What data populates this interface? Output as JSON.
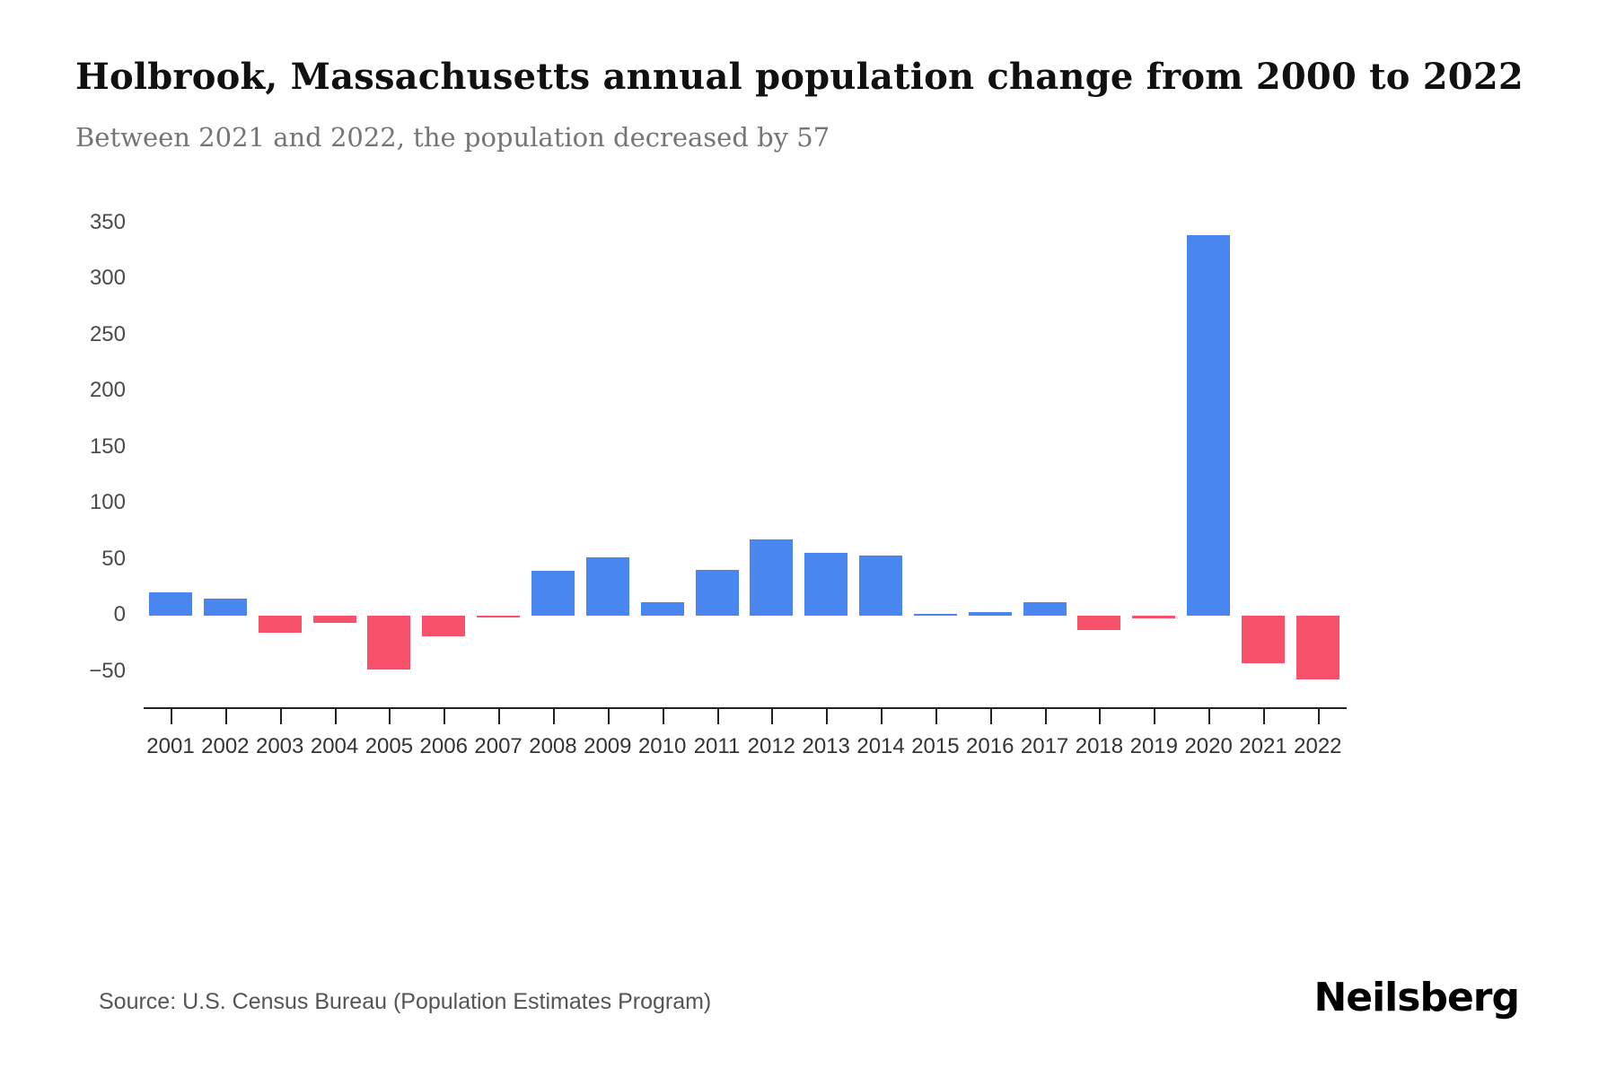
{
  "header": {
    "title": "Holbrook, Massachusetts annual population change from 2000 to 2022",
    "subtitle": "Between 2021 and 2022, the population decreased by 57"
  },
  "footer": {
    "source": "Source: U.S. Census Bureau (Population Estimates Program)",
    "logo": "Neilsberg"
  },
  "colors": {
    "positive_bar": "#4a86f0",
    "negative_bar": "#f8516c",
    "axis": "#222222",
    "tick_label": "#4a4a4a"
  },
  "chart_data": {
    "type": "bar",
    "title": "Holbrook, Massachusetts annual population change from 2000 to 2022",
    "xlabel": "",
    "ylabel": "",
    "categories": [
      "2001",
      "2002",
      "2003",
      "2004",
      "2005",
      "2006",
      "2007",
      "2008",
      "2009",
      "2010",
      "2011",
      "2012",
      "2013",
      "2014",
      "2015",
      "2016",
      "2017",
      "2018",
      "2019",
      "2020",
      "2021",
      "2022"
    ],
    "values": [
      21,
      15,
      -15,
      -6,
      -48,
      -18,
      -1,
      40,
      52,
      12,
      41,
      68,
      56,
      54,
      1,
      3,
      12,
      -13,
      -2,
      339,
      -42,
      -57
    ],
    "y_ticks": [
      350,
      300,
      250,
      200,
      150,
      100,
      50,
      0,
      -50
    ],
    "ylim": [
      -82,
      365
    ],
    "grid": false,
    "legend": "none",
    "positive_color": "#4a86f0",
    "negative_color": "#f8516c"
  }
}
